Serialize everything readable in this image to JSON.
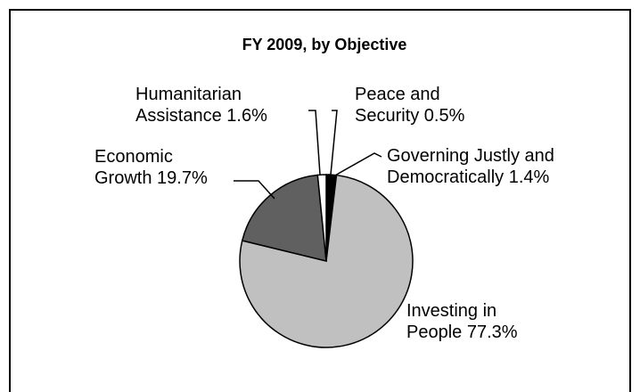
{
  "chart_data": {
    "type": "pie",
    "title": "FY 2009, by Objective",
    "slices": [
      {
        "label_lines": [
          "Peace and",
          "Security 0.5%"
        ],
        "value": 0.5,
        "color": "#000000"
      },
      {
        "label_lines": [
          "Governing Justly and",
          "Democratically 1.4%"
        ],
        "value": 1.4,
        "color": "#000000"
      },
      {
        "label_lines": [
          "Investing in",
          "People 77.3%"
        ],
        "value": 77.3,
        "color": "#c0c0c0"
      },
      {
        "label_lines": [
          "Economic",
          "Growth 19.7%"
        ],
        "value": 19.7,
        "color": "#606060"
      },
      {
        "label_lines": [
          "Humanitarian",
          "Assistance 1.6%"
        ],
        "value": 1.6,
        "color": "#ffffff"
      }
    ],
    "start_angle_deg": 0,
    "direction": "clockwise"
  }
}
